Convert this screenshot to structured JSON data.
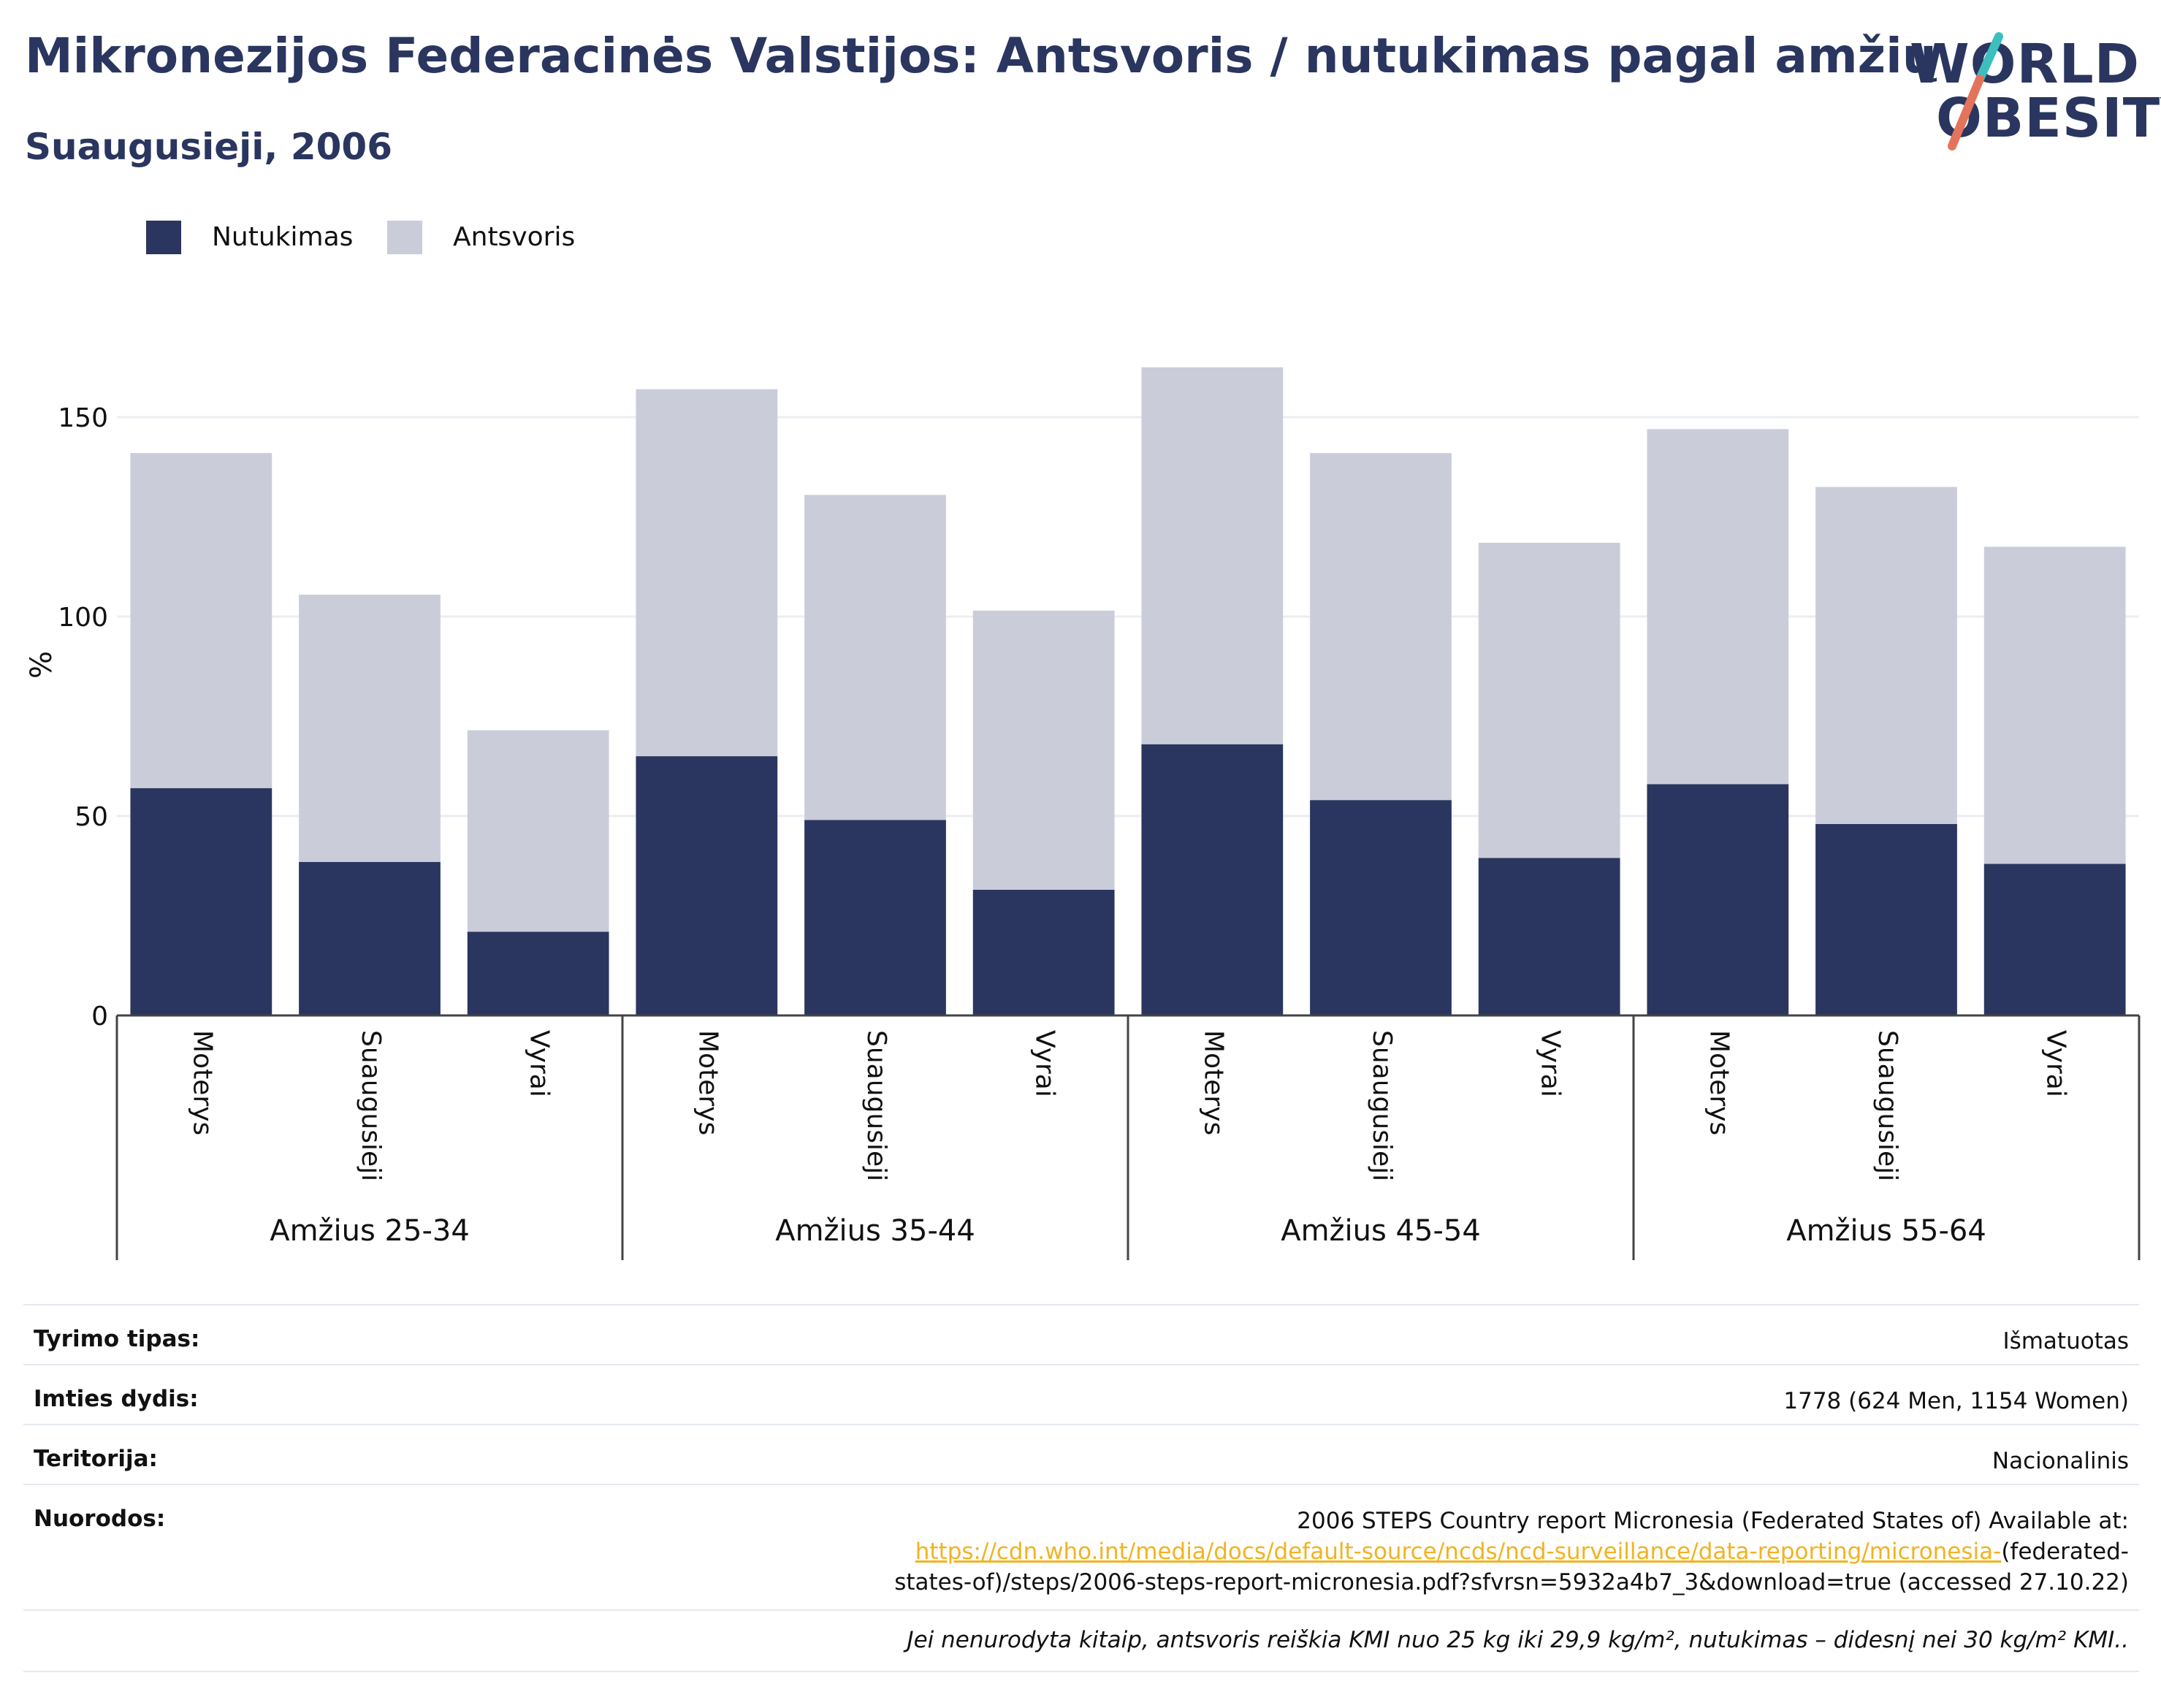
{
  "header": {
    "title": "Mikronezijos Federacinės Valstijos: Antsvoris / nutukimas pagal amžių",
    "subtitle": "Suaugusieji, 2006"
  },
  "logo": {
    "line1": "WORLD",
    "line2": "OBESITY",
    "slash_colors": [
      "#3cbfbf",
      "#e4735c"
    ]
  },
  "colors": {
    "obesity": "#2a365f",
    "overweight": "#cacdd9",
    "grid": "#eceef3"
  },
  "chart_data": {
    "type": "bar",
    "stacked": true,
    "ylabel": "%",
    "ylim": [
      0,
      170
    ],
    "yticks": [
      0,
      50,
      100,
      150
    ],
    "grid": true,
    "legend_position": "top-left",
    "groups": [
      {
        "label": "Amžius 25-34",
        "categories": [
          "Moterys",
          "Suaugusieji",
          "Vyrai"
        ]
      },
      {
        "label": "Amžius 35-44",
        "categories": [
          "Moterys",
          "Suaugusieji",
          "Vyrai"
        ]
      },
      {
        "label": "Amžius 45-54",
        "categories": [
          "Moterys",
          "Suaugusieji",
          "Vyrai"
        ]
      },
      {
        "label": "Amžius 55-64",
        "categories": [
          "Moterys",
          "Suaugusieji",
          "Vyrai"
        ]
      }
    ],
    "series": [
      {
        "name": "Nutukimas",
        "values": [
          57,
          38.5,
          21,
          65,
          49,
          31.5,
          68,
          54,
          39.5,
          58,
          48,
          38
        ]
      },
      {
        "name": "Antsvoris",
        "values": [
          84,
          67,
          50.5,
          92,
          81.5,
          70,
          94.5,
          87,
          79,
          89,
          84.5,
          79.5
        ]
      }
    ]
  },
  "info": {
    "rows": [
      {
        "key": "Tyrimo tipas:",
        "value": "Išmatuotas"
      },
      {
        "key": "Imties dydis:",
        "value": "1778 (624 Men, 1154 Women)"
      },
      {
        "key": "Teritorija:",
        "value": "Nacionalinis"
      }
    ],
    "references": {
      "key": "Nuorodos:",
      "before": "2006 STEPS Country report Micronesia (Federated States of) Available at: ",
      "link": "https://cdn.who.int/media/docs/default-source/ncds/ncd-surveillance/data-reporting/micronesia-",
      "after": "(federated-states-of)/steps/2006-steps-report-micronesia.pdf?sfvrsn=5932a4b7_3&download=true (accessed 27.10.22)"
    },
    "note": "Jei nenurodyta kitaip, antsvoris reiškia KMI nuo 25 kg iki 29,9 kg/m², nutukimas – didesnį nei 30 kg/m² KMI.."
  }
}
